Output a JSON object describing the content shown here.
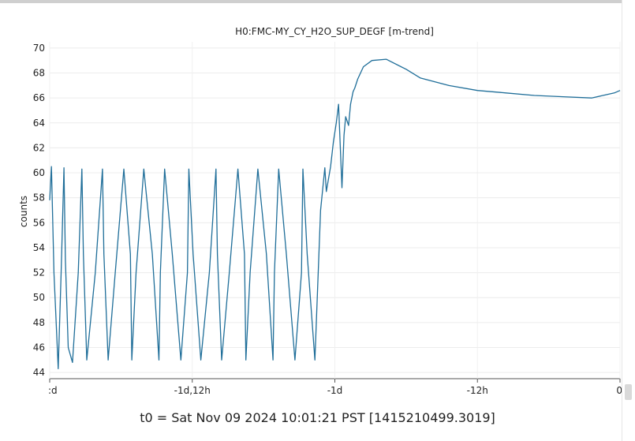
{
  "chart_data": {
    "type": "line",
    "title": "H0:FMC-MY_CY_H2O_SUP_DEGF [m-trend]",
    "xlabel": "",
    "ylabel": "counts",
    "ylim": [
      43.5,
      70.5
    ],
    "yticks": [
      44,
      46,
      48,
      50,
      52,
      54,
      56,
      58,
      60,
      62,
      64,
      66,
      68,
      70
    ],
    "xticks": [
      {
        "label": ":d",
        "value": -2.0
      },
      {
        "label": "-1d,12h",
        "value": -1.5
      },
      {
        "label": "-1d",
        "value": -1.0
      },
      {
        "label": "-12h",
        "value": -0.5
      },
      {
        "label": "0",
        "value": 0.0
      }
    ],
    "xlim": [
      -2.0,
      0.0
    ],
    "grid": true,
    "series": [
      {
        "color": "#1f6e99",
        "x": [
          -2.0,
          -1.994,
          -1.985,
          -1.97,
          -1.96,
          -1.95,
          -1.945,
          -1.935,
          -1.92,
          -1.9,
          -1.887,
          -1.882,
          -1.87,
          -1.84,
          -1.815,
          -1.81,
          -1.795,
          -1.77,
          -1.74,
          -1.717,
          -1.712,
          -1.697,
          -1.67,
          -1.64,
          -1.617,
          -1.612,
          -1.597,
          -1.57,
          -1.54,
          -1.517,
          -1.512,
          -1.497,
          -1.47,
          -1.44,
          -1.417,
          -1.412,
          -1.397,
          -1.37,
          -1.34,
          -1.317,
          -1.312,
          -1.297,
          -1.27,
          -1.24,
          -1.217,
          -1.212,
          -1.197,
          -1.17,
          -1.14,
          -1.117,
          -1.112,
          -1.097,
          -1.07,
          -1.05,
          -1.035,
          -1.03,
          -1.015,
          -1.005,
          -0.995,
          -0.987,
          -0.975,
          -0.968,
          -0.962,
          -0.952,
          -0.945,
          -0.936,
          -0.93,
          -0.92,
          -0.9,
          -0.87,
          -0.82,
          -0.75,
          -0.7,
          -0.6,
          -0.5,
          -0.4,
          -0.3,
          -0.2,
          -0.1,
          -0.06,
          -0.02,
          0.0
        ],
        "y": [
          57.8,
          60.5,
          52.0,
          44.3,
          52.0,
          60.4,
          53.0,
          46.0,
          44.8,
          52.0,
          60.3,
          53.5,
          45.0,
          52.0,
          60.3,
          53.5,
          45.0,
          52.0,
          60.3,
          53.5,
          45.0,
          52.0,
          60.3,
          53.5,
          45.0,
          52.0,
          60.3,
          53.5,
          45.0,
          52.0,
          60.3,
          53.5,
          45.0,
          52.0,
          60.3,
          53.5,
          45.0,
          52.0,
          60.3,
          53.5,
          45.0,
          52.0,
          60.3,
          53.5,
          45.0,
          52.0,
          60.3,
          53.5,
          45.0,
          52.0,
          60.3,
          53.5,
          45.0,
          57.0,
          60.4,
          58.5,
          60.5,
          62.5,
          64.0,
          65.5,
          58.8,
          63.0,
          64.5,
          63.8,
          65.5,
          66.5,
          66.8,
          67.5,
          68.5,
          69.0,
          69.1,
          68.3,
          67.6,
          67.0,
          66.6,
          66.4,
          66.2,
          66.1,
          66.0,
          66.2,
          66.4,
          66.6
        ]
      }
    ]
  },
  "footer": {
    "t0": "t0 = Sat Nov 09 2024 10:01:21 PST [1415210499.3019]"
  }
}
